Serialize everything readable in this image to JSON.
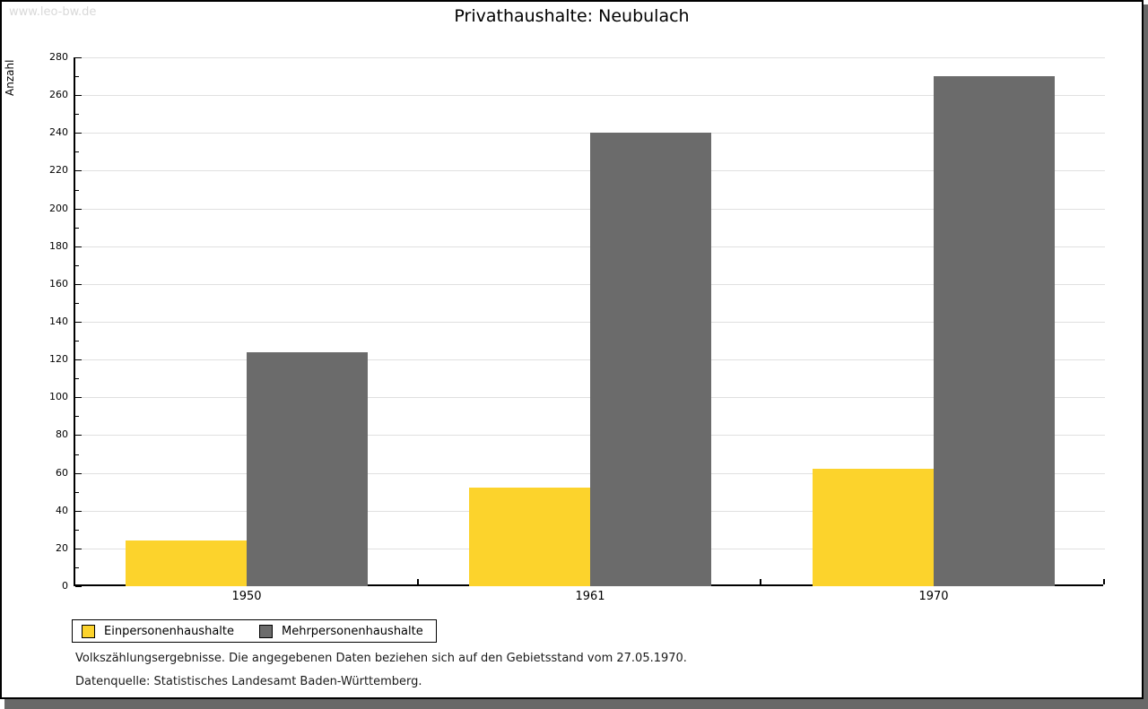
{
  "watermark": "www.leo-bw.de",
  "chart_data": {
    "type": "bar",
    "title": "Privathaushalte: Neubulach",
    "xlabel": "",
    "ylabel": "Anzahl",
    "categories": [
      "1950",
      "1961",
      "1970"
    ],
    "series": [
      {
        "name": "Einpersonenhaushalte",
        "color": "#fcd32c",
        "values": [
          24,
          52,
          62
        ]
      },
      {
        "name": "Mehrpersonenhaushalte",
        "color": "#6b6b6b",
        "values": [
          124,
          240,
          270
        ]
      }
    ],
    "ylim": [
      0,
      280
    ],
    "ytick_step": 20,
    "minor_tick_step": 10,
    "grid": "horizontal",
    "legend_position": "bottom-left"
  },
  "footnotes": [
    "Volkszählungsergebnisse. Die angegebenen Daten beziehen sich auf den Gebietsstand vom 27.05.1970.",
    "Datenquelle: Statistisches Landesamt Baden-Württemberg."
  ],
  "colors": {
    "background": "#ffffff",
    "frame_border": "#000000",
    "shadow": "#686868",
    "gridline": "#e0e0e0",
    "watermark": "#d9d9d9",
    "axis": "#000000"
  }
}
